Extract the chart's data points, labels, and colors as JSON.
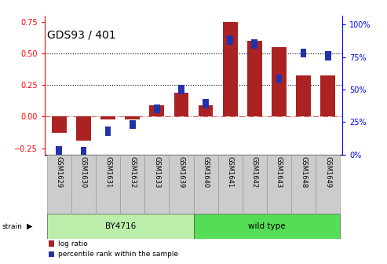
{
  "title": "GDS93 / 401",
  "samples": [
    "GSM1629",
    "GSM1630",
    "GSM1631",
    "GSM1632",
    "GSM1633",
    "GSM1639",
    "GSM1640",
    "GSM1641",
    "GSM1642",
    "GSM1643",
    "GSM1648",
    "GSM1649"
  ],
  "log_ratio": [
    -0.13,
    -0.19,
    -0.02,
    -0.02,
    0.09,
    0.19,
    0.09,
    0.75,
    0.6,
    0.55,
    0.33,
    0.33
  ],
  "percentile_rank": [
    3,
    2,
    18,
    23,
    35,
    50,
    39,
    88,
    85,
    58,
    78,
    76
  ],
  "bar_color": "#aa2222",
  "dot_color": "#2233aa",
  "strain_groups": [
    {
      "label": "BY4716",
      "start": 0,
      "end": 6,
      "color": "#bbeeaa"
    },
    {
      "label": "wild type",
      "start": 6,
      "end": 12,
      "color": "#55dd55"
    }
  ],
  "ylim_left": [
    -0.3,
    0.8
  ],
  "ylim_right": [
    0.0,
    106.67
  ],
  "yticks_left": [
    -0.25,
    0.0,
    0.25,
    0.5,
    0.75
  ],
  "yticks_right": [
    0,
    25,
    50,
    75,
    100
  ],
  "hlines": [
    0.25,
    0.5
  ],
  "background_color": "#ffffff",
  "tick_label_fontsize": 7,
  "title_fontsize": 10,
  "sample_label_fontsize": 6,
  "label_bg_color": "#cccccc"
}
